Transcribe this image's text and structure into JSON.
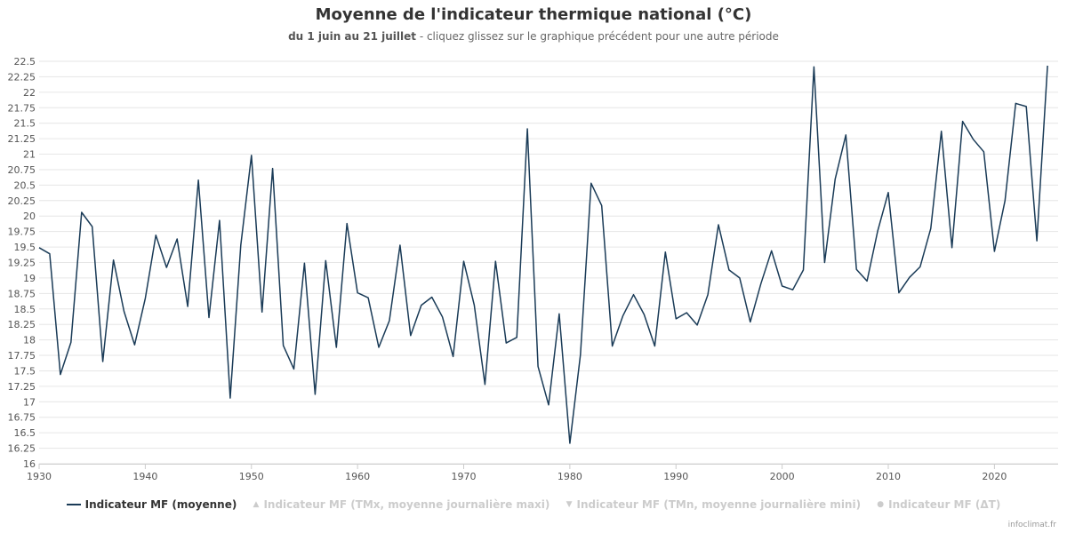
{
  "colors": {
    "series": "#1a3b57",
    "grid": "#e6e6e6",
    "inactive": "#cccccc"
  },
  "legend": {
    "items": [
      {
        "label": "Indicateur MF (moyenne)",
        "symbol": "line",
        "active": true
      },
      {
        "label": "Indicateur MF (TMx, moyenne journalière maxi)",
        "symbol": "▲",
        "active": false
      },
      {
        "label": "Indicateur MF (TMn, moyenne journalière mini)",
        "symbol": "▼",
        "active": false
      },
      {
        "label": "Indicateur MF (ΔT)",
        "symbol": "●",
        "active": false
      }
    ]
  },
  "credits": "infoclimat.fr",
  "chart_data": {
    "type": "line",
    "title": "Moyenne de l'indicateur thermique national (°C)",
    "subtitle_bold": "du 1 juin au 21 juillet",
    "subtitle_rest": " - cliquez glissez sur le graphique précédent pour une autre période",
    "xlabel": "",
    "ylabel": "",
    "xlim": [
      1930,
      2026
    ],
    "ylim": [
      16,
      22.5
    ],
    "x_ticks": [
      1930,
      1940,
      1950,
      1960,
      1970,
      1980,
      1990,
      2000,
      2010,
      2020
    ],
    "y_ticks": [
      "16",
      "16.25",
      "16.5",
      "16.75",
      "17",
      "17.25",
      "17.5",
      "17.75",
      "18",
      "18.25",
      "18.5",
      "18.75",
      "19",
      "19.25",
      "19.5",
      "19.75",
      "20",
      "20.25",
      "20.5",
      "20.75",
      "21",
      "21.25",
      "21.5",
      "21.75",
      "22",
      "22.25",
      "22.5"
    ],
    "grid": true,
    "legend_position": "bottom",
    "series": [
      {
        "name": "Indicateur MF (moyenne)",
        "x": [
          1930,
          1931,
          1932,
          1933,
          1934,
          1935,
          1936,
          1937,
          1938,
          1939,
          1940,
          1941,
          1942,
          1943,
          1944,
          1945,
          1946,
          1947,
          1948,
          1949,
          1950,
          1951,
          1952,
          1953,
          1954,
          1955,
          1956,
          1957,
          1958,
          1959,
          1960,
          1961,
          1962,
          1963,
          1964,
          1965,
          1966,
          1967,
          1968,
          1969,
          1970,
          1971,
          1972,
          1973,
          1974,
          1975,
          1976,
          1977,
          1978,
          1979,
          1980,
          1981,
          1982,
          1983,
          1984,
          1985,
          1986,
          1987,
          1988,
          1989,
          1990,
          1991,
          1992,
          1993,
          1994,
          1995,
          1996,
          1997,
          1998,
          1999,
          2000,
          2001,
          2002,
          2003,
          2004,
          2005,
          2006,
          2007,
          2008,
          2009,
          2010,
          2011,
          2012,
          2013,
          2014,
          2015,
          2016,
          2017,
          2018,
          2019,
          2020,
          2021,
          2022,
          2023,
          2024,
          2025
        ],
        "values": [
          19.49,
          19.39,
          17.44,
          17.96,
          20.06,
          19.83,
          17.65,
          19.29,
          18.46,
          17.92,
          18.67,
          19.69,
          19.17,
          19.63,
          18.54,
          20.58,
          18.36,
          19.93,
          17.06,
          19.53,
          20.98,
          18.45,
          20.77,
          17.91,
          17.53,
          19.24,
          17.12,
          19.28,
          17.88,
          19.88,
          18.76,
          18.68,
          17.88,
          18.31,
          19.53,
          18.07,
          18.56,
          18.69,
          18.37,
          17.73,
          19.27,
          18.56,
          17.28,
          19.27,
          17.95,
          18.04,
          21.41,
          17.57,
          16.95,
          18.42,
          16.33,
          17.76,
          20.53,
          20.17,
          17.9,
          18.39,
          18.73,
          18.41,
          17.9,
          19.42,
          18.34,
          18.44,
          18.24,
          18.73,
          19.86,
          19.13,
          19.0,
          18.29,
          18.91,
          19.44,
          18.87,
          18.81,
          19.13,
          22.41,
          19.25,
          20.6,
          21.31,
          19.14,
          18.95,
          19.76,
          20.38,
          18.76,
          19.01,
          19.18,
          19.8,
          21.37,
          19.49,
          21.53,
          21.24,
          21.04,
          19.43,
          20.25,
          21.82,
          21.77,
          19.6,
          22.43
        ]
      }
    ]
  }
}
